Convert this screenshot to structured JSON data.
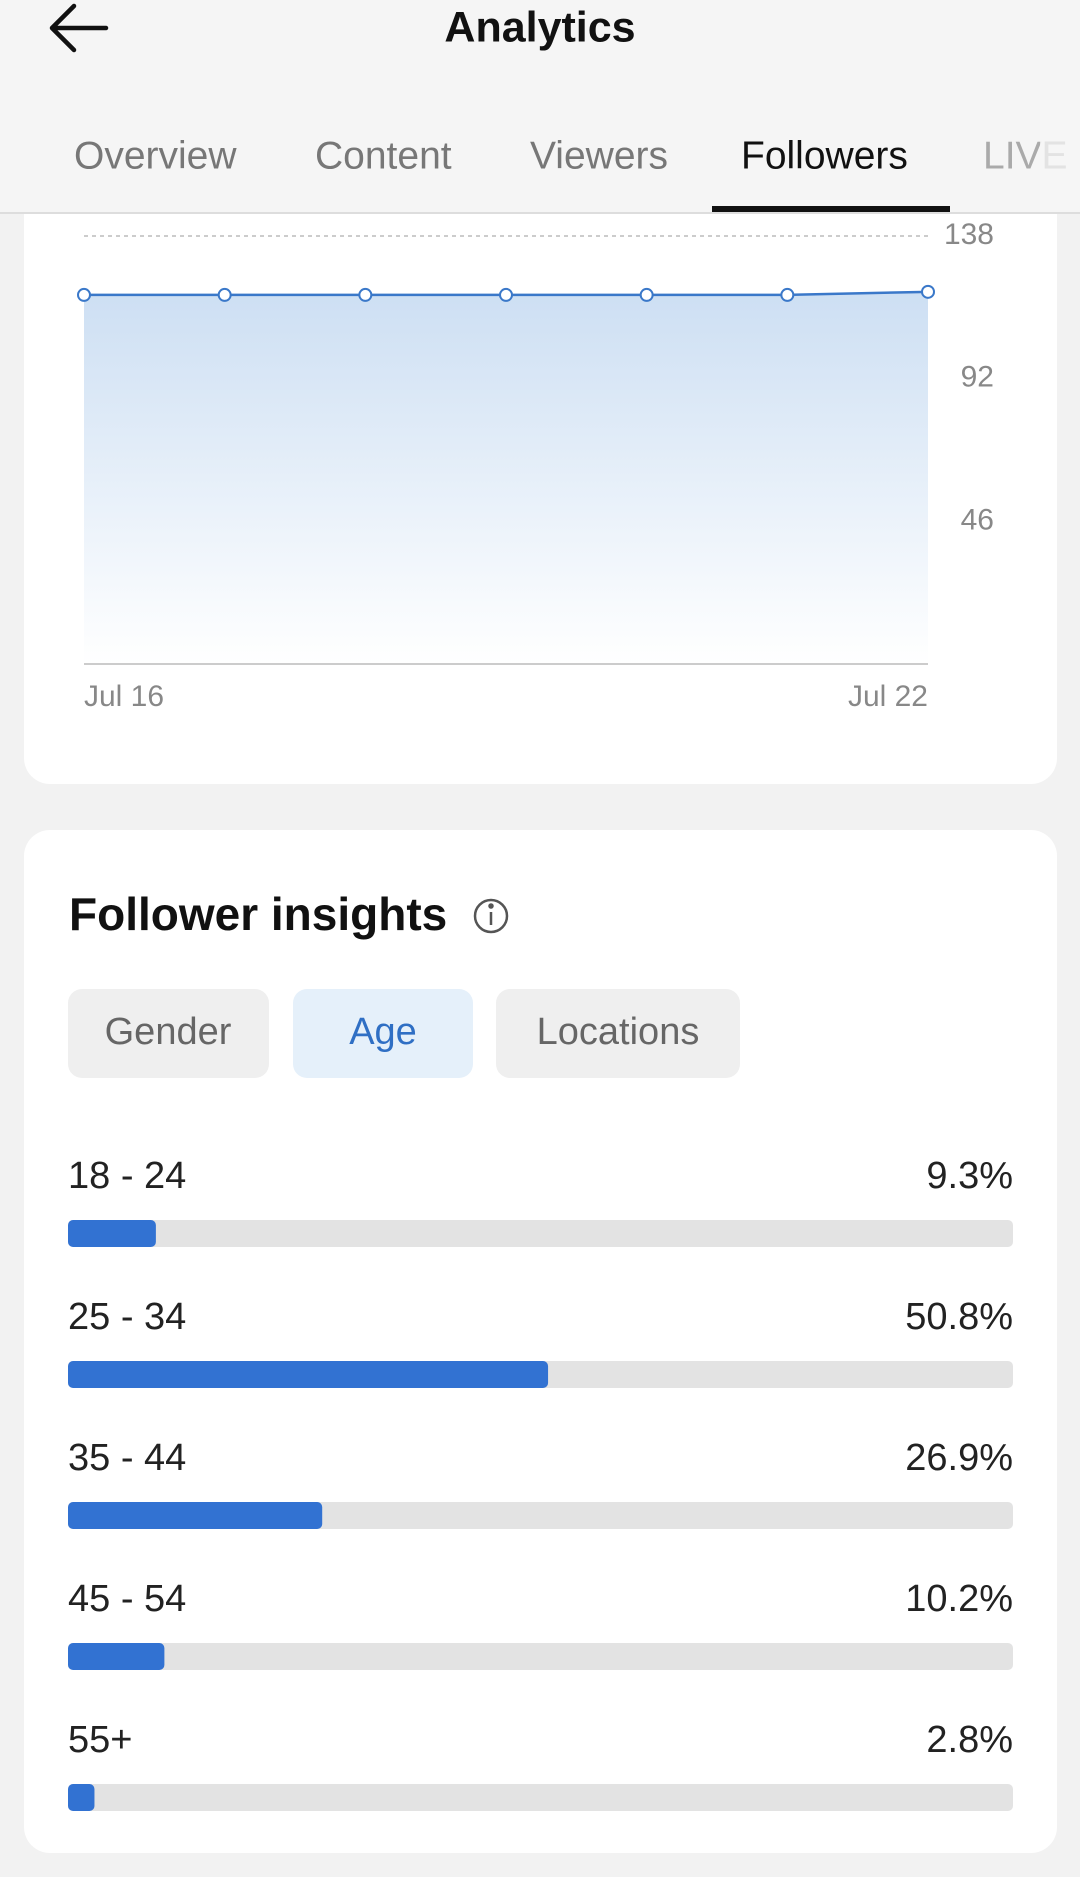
{
  "header": {
    "title": "Analytics"
  },
  "tabs": [
    "Overview",
    "Content",
    "Viewers",
    "Followers",
    "LIVE"
  ],
  "chart_data": [
    {
      "type": "line",
      "categories": [
        "Jul 16",
        null,
        null,
        null,
        null,
        null,
        "Jul 22"
      ],
      "values": [
        119,
        119,
        119,
        119,
        119,
        119,
        120
      ],
      "color": "#3a78c9",
      "ylim": [
        0,
        138
      ],
      "yticks": [
        46,
        92,
        138
      ],
      "grid": true
    },
    {
      "type": "hbar",
      "title": "Follower insights",
      "filters": [
        "Gender",
        "Age",
        "Locations"
      ],
      "categories": [
        "18 - 24",
        "25 - 34",
        "35 - 44",
        "45 - 54",
        "55+"
      ],
      "values": [
        9.3,
        50.8,
        26.9,
        10.2,
        2.8
      ],
      "value_labels": [
        "9.3%",
        "50.8%",
        "26.9%",
        "10.2%",
        "2.8%"
      ],
      "color": "#3272d2",
      "xlim": [
        0,
        100
      ]
    }
  ]
}
